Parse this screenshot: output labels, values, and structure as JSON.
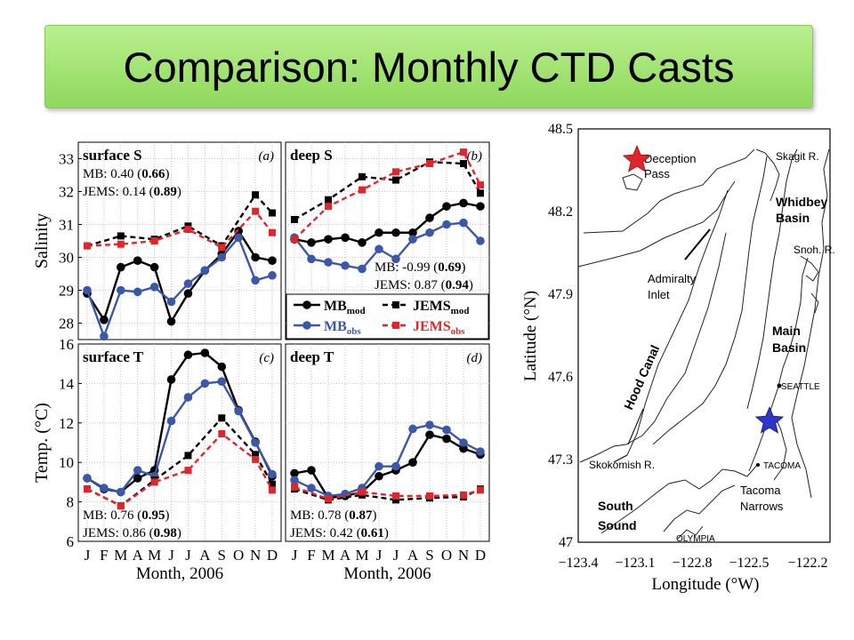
{
  "slide": {
    "title": "Comparison: Monthly CTD Casts"
  },
  "colors": {
    "black": "#000000",
    "blue": "#3b58a8",
    "red": "#e0262b"
  },
  "months": [
    "J",
    "F",
    "M",
    "A",
    "M",
    "J",
    "J",
    "A",
    "S",
    "O",
    "N",
    "D"
  ],
  "xlabel": "Month, 2006",
  "ylabels": {
    "salinity": "Salinity",
    "temp": "Temp. (°C)"
  },
  "legend": [
    {
      "base": "MB",
      "sub": "mod",
      "color": "black",
      "style": "solid",
      "marker": "circle"
    },
    {
      "base": "MB",
      "sub": "obs",
      "color": "blue",
      "style": "solid",
      "marker": "circle"
    },
    {
      "base": "JEMS",
      "sub": "mod",
      "color": "black",
      "style": "dashed",
      "marker": "square"
    },
    {
      "base": "JEMS",
      "sub": "obs",
      "color": "red",
      "style": "dashed",
      "marker": "square"
    }
  ],
  "chart_data": [
    {
      "type": "line",
      "title": "surface S",
      "tag": "(a)",
      "ylim": [
        27.5,
        33.5
      ],
      "yticks": [
        28,
        29,
        30,
        31,
        32,
        33
      ],
      "stats": [
        {
          "name": "MB",
          "value": "0.40",
          "bold": "0.66"
        },
        {
          "name": "JEMS",
          "value": "0.14",
          "bold": "0.89"
        }
      ],
      "series": [
        {
          "name": "MB mod",
          "x": [
            1,
            2,
            3,
            4,
            5,
            6,
            7,
            8,
            9,
            10,
            11,
            12
          ],
          "values": [
            28.9,
            28.1,
            29.7,
            29.9,
            29.7,
            28.05,
            28.9,
            29.6,
            30.1,
            30.8,
            30.0,
            29.9
          ]
        },
        {
          "name": "MB obs",
          "x": [
            1,
            2,
            3,
            4,
            5,
            6,
            7,
            8,
            9,
            10,
            11,
            12
          ],
          "values": [
            29.0,
            27.6,
            29.0,
            28.95,
            29.1,
            28.65,
            29.2,
            29.6,
            30.0,
            30.6,
            29.3,
            29.45
          ]
        },
        {
          "name": "JEMS mod",
          "x": [
            1,
            3,
            5,
            7,
            9,
            11,
            12
          ],
          "values": [
            30.35,
            30.65,
            30.55,
            30.95,
            30.35,
            31.9,
            31.35
          ]
        },
        {
          "name": "JEMS obs",
          "x": [
            1,
            3,
            5,
            7,
            9,
            11,
            12
          ],
          "values": [
            30.35,
            30.4,
            30.5,
            30.85,
            30.3,
            31.4,
            30.75
          ]
        }
      ]
    },
    {
      "type": "line",
      "title": "deep S",
      "tag": "(b)",
      "ylim": [
        27.5,
        33.5
      ],
      "yticks": [
        28,
        29,
        30,
        31,
        32,
        33
      ],
      "stats": [
        {
          "name": "MB",
          "value": "-0.99",
          "bold": "0.69"
        },
        {
          "name": "JEMS",
          "value": "0.87",
          "bold": "0.94"
        }
      ],
      "series": [
        {
          "name": "MB mod",
          "x": [
            1,
            2,
            3,
            4,
            5,
            6,
            7,
            8,
            9,
            10,
            11,
            12
          ],
          "values": [
            30.55,
            30.45,
            30.55,
            30.6,
            30.45,
            30.75,
            30.75,
            30.75,
            31.2,
            31.55,
            31.65,
            31.55
          ]
        },
        {
          "name": "MB obs",
          "x": [
            1,
            2,
            3,
            4,
            5,
            6,
            7,
            8,
            9,
            10,
            11,
            12
          ],
          "values": [
            30.6,
            29.95,
            29.85,
            29.75,
            29.65,
            30.25,
            29.95,
            30.55,
            30.75,
            31.0,
            31.05,
            30.5
          ]
        },
        {
          "name": "JEMS mod",
          "x": [
            1,
            3,
            5,
            7,
            9,
            11,
            12
          ],
          "values": [
            31.15,
            31.75,
            32.45,
            32.35,
            32.9,
            32.85,
            31.95
          ]
        },
        {
          "name": "JEMS obs",
          "x": [
            1,
            3,
            5,
            7,
            9,
            11,
            12
          ],
          "values": [
            30.55,
            31.55,
            32.05,
            32.6,
            32.85,
            33.2,
            32.2
          ]
        }
      ]
    },
    {
      "type": "line",
      "title": "surface T",
      "tag": "(c)",
      "ylim": [
        6,
        16
      ],
      "yticks": [
        6,
        8,
        10,
        12,
        14,
        16
      ],
      "stats": [
        {
          "name": "MB",
          "value": "0.76",
          "bold": "0.95"
        },
        {
          "name": "JEMS",
          "value": "0.86",
          "bold": "0.98"
        }
      ],
      "series": [
        {
          "name": "MB mod",
          "x": [
            1,
            2,
            3,
            4,
            5,
            6,
            7,
            8,
            9,
            10,
            11,
            12
          ],
          "values": [
            9.2,
            8.65,
            8.5,
            9.2,
            9.6,
            14.2,
            15.45,
            15.55,
            14.85,
            12.65,
            11.05,
            9.3
          ]
        },
        {
          "name": "MB obs",
          "x": [
            1,
            2,
            3,
            4,
            5,
            6,
            7,
            8,
            9,
            10,
            11,
            12
          ],
          "values": [
            9.2,
            8.7,
            8.5,
            9.6,
            9.3,
            12.1,
            13.3,
            14.0,
            14.1,
            12.6,
            11.0,
            9.4
          ]
        },
        {
          "name": "JEMS mod",
          "x": [
            1,
            3,
            5,
            7,
            9,
            11,
            12
          ],
          "values": [
            8.65,
            7.8,
            9.1,
            10.35,
            12.25,
            10.4,
            8.9
          ]
        },
        {
          "name": "JEMS obs",
          "x": [
            1,
            3,
            5,
            7,
            9,
            11,
            12
          ],
          "values": [
            8.65,
            7.8,
            9.0,
            9.6,
            11.45,
            10.15,
            8.6
          ]
        }
      ]
    },
    {
      "type": "line",
      "title": "deep T",
      "tag": "(d)",
      "ylim": [
        6,
        16
      ],
      "yticks": [
        6,
        8,
        10,
        12,
        14,
        16
      ],
      "stats": [
        {
          "name": "MB",
          "value": "0.78",
          "bold": "0.87"
        },
        {
          "name": "JEMS",
          "value": "0.42",
          "bold": "0.61"
        }
      ],
      "series": [
        {
          "name": "MB mod",
          "x": [
            1,
            2,
            3,
            4,
            5,
            6,
            7,
            8,
            9,
            10,
            11,
            12
          ],
          "values": [
            9.45,
            9.6,
            8.2,
            8.3,
            8.5,
            9.3,
            9.6,
            10.0,
            11.4,
            11.2,
            10.7,
            10.4
          ]
        },
        {
          "name": "MB obs",
          "x": [
            1,
            2,
            3,
            4,
            5,
            6,
            7,
            8,
            9,
            10,
            11,
            12
          ],
          "values": [
            9.1,
            8.7,
            8.3,
            8.4,
            8.7,
            9.8,
            9.8,
            11.7,
            11.9,
            11.65,
            11.0,
            10.55
          ]
        },
        {
          "name": "JEMS mod",
          "x": [
            1,
            3,
            5,
            7,
            9,
            11,
            12
          ],
          "values": [
            8.65,
            8.1,
            8.35,
            8.1,
            8.2,
            8.25,
            8.65
          ]
        },
        {
          "name": "JEMS obs",
          "x": [
            1,
            3,
            5,
            7,
            9,
            11,
            12
          ],
          "values": [
            8.75,
            8.15,
            8.5,
            8.3,
            8.3,
            8.35,
            8.6
          ]
        }
      ]
    }
  ],
  "map": {
    "xlabel": "Longitude (°W)",
    "ylabel": "Latitude (°N)",
    "xticks": [
      "−123.4",
      "−123.1",
      "−122.8",
      "−122.5",
      "−122.2"
    ],
    "yticks": [
      "47",
      "47.3",
      "47.6",
      "47.9",
      "48.2",
      "48.5"
    ],
    "labels": {
      "deception": "Deception",
      "pass": "Pass",
      "skagit": "Skagit R.",
      "whidbey": "Whidbey",
      "whidbey_basin": "Basin",
      "snoh": "Snoh. R.",
      "admiralty": "Admiralty",
      "admiralty_inlet": "Inlet",
      "main": "Main",
      "main_basin": "Basin",
      "seattle": "SEATTLE",
      "hood": "Hood Canal",
      "skokomish": "Skokomish R.",
      "tacoma": "TACOMA",
      "tacoma_n": "Tacoma",
      "narrows": "Narrows",
      "south": "South",
      "sound": "Sound",
      "olympia": "OLYMPIA"
    },
    "stations": [
      {
        "name": "red-station-star",
        "color": "#e0262b"
      },
      {
        "name": "blue-station-star",
        "color": "#2e35c8"
      }
    ]
  }
}
